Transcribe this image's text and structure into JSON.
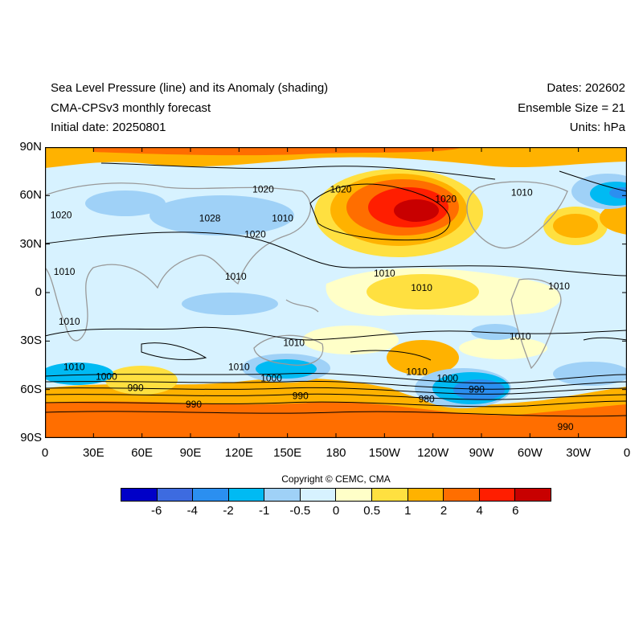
{
  "header": {
    "title_line1": "Sea Level Pressure (line) and its Anomaly (shading)",
    "title_line2": "CMA-CPSv3 monthly forecast",
    "title_line3": "Initial date: 20250801",
    "dates": "Dates: 202602",
    "ensemble": "Ensemble Size = 21",
    "units": "Units: hPa"
  },
  "map": {
    "lat_labels": [
      "90N",
      "60N",
      "30N",
      "0",
      "30S",
      "60S",
      "90S"
    ],
    "lon_labels": [
      "0",
      "30E",
      "60E",
      "90E",
      "120E",
      "150E",
      "180",
      "150W",
      "120W",
      "90W",
      "60W",
      "30W",
      "0"
    ],
    "contour_labels": [
      {
        "text": "1020",
        "lon": 135,
        "lat": 64
      },
      {
        "text": "1020",
        "lon": 183,
        "lat": 64
      },
      {
        "text": "1020",
        "lon": 248,
        "lat": 58
      },
      {
        "text": "1020",
        "lon": 10,
        "lat": 48
      },
      {
        "text": "1028",
        "lon": 102,
        "lat": 46
      },
      {
        "text": "1020",
        "lon": 130,
        "lat": 36
      },
      {
        "text": "1010",
        "lon": 147,
        "lat": 46
      },
      {
        "text": "1010",
        "lon": 295,
        "lat": 62
      },
      {
        "text": "1010",
        "lon": 12,
        "lat": 13
      },
      {
        "text": "1010",
        "lon": 118,
        "lat": 10
      },
      {
        "text": "1010",
        "lon": 210,
        "lat": 12
      },
      {
        "text": "1010",
        "lon": 233,
        "lat": 3
      },
      {
        "text": "1010",
        "lon": 318,
        "lat": 4
      },
      {
        "text": "1010",
        "lon": 15,
        "lat": -18
      },
      {
        "text": "1010",
        "lon": 154,
        "lat": -31
      },
      {
        "text": "1010",
        "lon": 294,
        "lat": -27
      },
      {
        "text": "1010",
        "lon": 18,
        "lat": -46
      },
      {
        "text": "1000",
        "lon": 38,
        "lat": -52
      },
      {
        "text": "990",
        "lon": 56,
        "lat": -59
      },
      {
        "text": "1010",
        "lon": 120,
        "lat": -46
      },
      {
        "text": "1000",
        "lon": 140,
        "lat": -53
      },
      {
        "text": "990",
        "lon": 158,
        "lat": -64
      },
      {
        "text": "990",
        "lon": 92,
        "lat": -69
      },
      {
        "text": "1010",
        "lon": 230,
        "lat": -49
      },
      {
        "text": "1000",
        "lon": 249,
        "lat": -53
      },
      {
        "text": "990",
        "lon": 267,
        "lat": -60
      },
      {
        "text": "980",
        "lon": 236,
        "lat": -66
      },
      {
        "text": "990",
        "lon": 322,
        "lat": -83
      }
    ],
    "color_scale": [
      "#0000c8",
      "#3d6be0",
      "#2b8ff0",
      "#00baf3",
      "#9fd1f7",
      "#d7f2ff",
      "#ffffc8",
      "#ffe040",
      "#ffb200",
      "#ff6e00",
      "#ff1e00",
      "#c80000"
    ]
  },
  "copyright": "Copyright © CEMC, CMA",
  "colorbar": {
    "labels": [
      "-6",
      "-4",
      "-2",
      "-1",
      "-0.5",
      "0",
      "0.5",
      "1",
      "2",
      "4",
      "6"
    ],
    "colors": [
      "#0000c8",
      "#3d6be0",
      "#2b8ff0",
      "#00baf3",
      "#9fd1f7",
      "#d7f2ff",
      "#ffffc8",
      "#ffe040",
      "#ffb200",
      "#ff6e00",
      "#ff1e00",
      "#c80000"
    ]
  }
}
